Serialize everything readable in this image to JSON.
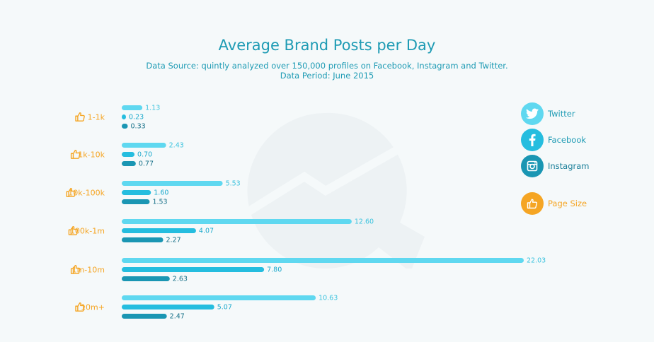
{
  "title": "Average Brand Posts per Day",
  "subtitle_line1": "Data Source: quintly analyzed over 150,000 profiles on Facebook, Instagram and Twitter.",
  "subtitle_line2": "Data Period: June 2015",
  "colors": {
    "twitter": "#5fd8f0",
    "facebook": "#25bddf",
    "instagram": "#1a96b3",
    "page_size": "#f5a523",
    "title": "#1e9bb4",
    "watermark": "#edf2f4"
  },
  "legend": {
    "twitter": "Twitter",
    "facebook": "Facebook",
    "instagram": "Instagram",
    "page_size": "Page Size",
    "icons": [
      "twitter-bird-icon",
      "facebook-f-icon",
      "instagram-camera-icon",
      "thumbs-up-icon"
    ]
  },
  "chart_data": {
    "type": "bar",
    "orientation": "horizontal",
    "title": "Average Brand Posts per Day",
    "categories": [
      "1-1k",
      "1k-10k",
      "10k-100k",
      "100k-1m",
      "1m-10m",
      "10m+"
    ],
    "series": [
      {
        "name": "Twitter",
        "values": [
          1.13,
          2.43,
          5.53,
          12.6,
          22.03,
          10.63
        ]
      },
      {
        "name": "Facebook",
        "values": [
          0.23,
          0.7,
          1.6,
          4.07,
          7.8,
          5.07
        ]
      },
      {
        "name": "Instagram",
        "values": [
          0.33,
          0.77,
          1.53,
          2.27,
          2.63,
          2.47
        ]
      }
    ],
    "value_labels": [
      [
        "1.13",
        "2.43",
        "5.53",
        "12.60",
        "22.03",
        "10.63"
      ],
      [
        "0.23",
        "0.70",
        "1.60",
        "4.07",
        "7.80",
        "5.07"
      ],
      [
        "0.33",
        "0.77",
        "1.53",
        "2.27",
        "2.63",
        "2.47"
      ]
    ],
    "xlim": [
      0,
      22.03
    ],
    "grid": false,
    "legend_position": "right"
  }
}
